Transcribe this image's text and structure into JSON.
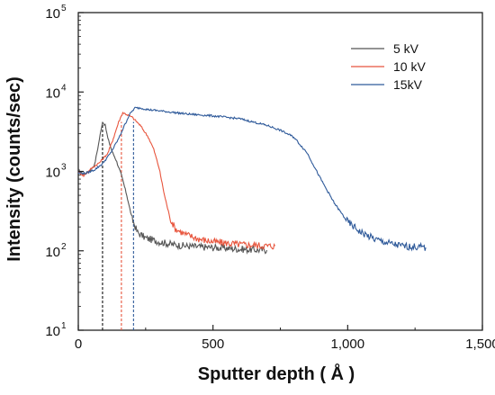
{
  "chart_data": {
    "type": "line",
    "title": "",
    "xlabel": "Sputter depth ( Å )",
    "ylabel": "Intensity (counts/sec)",
    "xlim": [
      0,
      1500
    ],
    "ylim": [
      10,
      100000
    ],
    "yscale": "log",
    "x_ticks": [
      "0",
      "500",
      "1,000",
      "1,500"
    ],
    "y_ticks": [
      {
        "base": "10",
        "exp": "1"
      },
      {
        "base": "10",
        "exp": "2"
      },
      {
        "base": "10",
        "exp": "3"
      },
      {
        "base": "10",
        "exp": "4"
      },
      {
        "base": "10",
        "exp": "5"
      }
    ],
    "legend_position": "top-right",
    "series": [
      {
        "name": "5 kV",
        "color": "#555555",
        "points": [
          [
            0,
            1050
          ],
          [
            20,
            920
          ],
          [
            40,
            1000
          ],
          [
            60,
            1200
          ],
          [
            75,
            2200
          ],
          [
            90,
            4200
          ],
          [
            100,
            3800
          ],
          [
            110,
            2600
          ],
          [
            125,
            1800
          ],
          [
            140,
            1400
          ],
          [
            160,
            900
          ],
          [
            180,
            500
          ],
          [
            200,
            250
          ],
          [
            220,
            170
          ],
          [
            250,
            145
          ],
          [
            300,
            130
          ],
          [
            350,
            120
          ],
          [
            400,
            115
          ],
          [
            450,
            112
          ],
          [
            500,
            110
          ],
          [
            550,
            108
          ],
          [
            600,
            105
          ],
          [
            650,
            103
          ],
          [
            700,
            102
          ]
        ],
        "marker_x": 90
      },
      {
        "name": "10 kV",
        "color": "#e8553d",
        "points": [
          [
            0,
            1000
          ],
          [
            20,
            880
          ],
          [
            50,
            1100
          ],
          [
            80,
            1300
          ],
          [
            110,
            1700
          ],
          [
            130,
            2600
          ],
          [
            150,
            4200
          ],
          [
            165,
            5500
          ],
          [
            180,
            5200
          ],
          [
            200,
            4800
          ],
          [
            230,
            3800
          ],
          [
            260,
            2700
          ],
          [
            280,
            1900
          ],
          [
            300,
            1100
          ],
          [
            320,
            500
          ],
          [
            340,
            260
          ],
          [
            360,
            190
          ],
          [
            400,
            160
          ],
          [
            450,
            140
          ],
          [
            500,
            130
          ],
          [
            550,
            125
          ],
          [
            600,
            120
          ],
          [
            650,
            118
          ],
          [
            700,
            115
          ],
          [
            730,
            115
          ]
        ],
        "marker_x": 160
      },
      {
        "name": "15kV",
        "color": "#2f5a9a",
        "points": [
          [
            0,
            950
          ],
          [
            30,
            950
          ],
          [
            60,
            1050
          ],
          [
            90,
            1250
          ],
          [
            120,
            1700
          ],
          [
            150,
            2600
          ],
          [
            170,
            3700
          ],
          [
            190,
            5200
          ],
          [
            210,
            6300
          ],
          [
            230,
            6300
          ],
          [
            260,
            6000
          ],
          [
            300,
            5800
          ],
          [
            400,
            5300
          ],
          [
            500,
            5000
          ],
          [
            600,
            4600
          ],
          [
            700,
            3800
          ],
          [
            750,
            3300
          ],
          [
            800,
            2700
          ],
          [
            850,
            1700
          ],
          [
            900,
            800
          ],
          [
            950,
            400
          ],
          [
            1000,
            230
          ],
          [
            1050,
            170
          ],
          [
            1100,
            140
          ],
          [
            1150,
            125
          ],
          [
            1200,
            115
          ],
          [
            1250,
            112
          ],
          [
            1290,
            110
          ]
        ],
        "marker_x": 205
      }
    ]
  }
}
